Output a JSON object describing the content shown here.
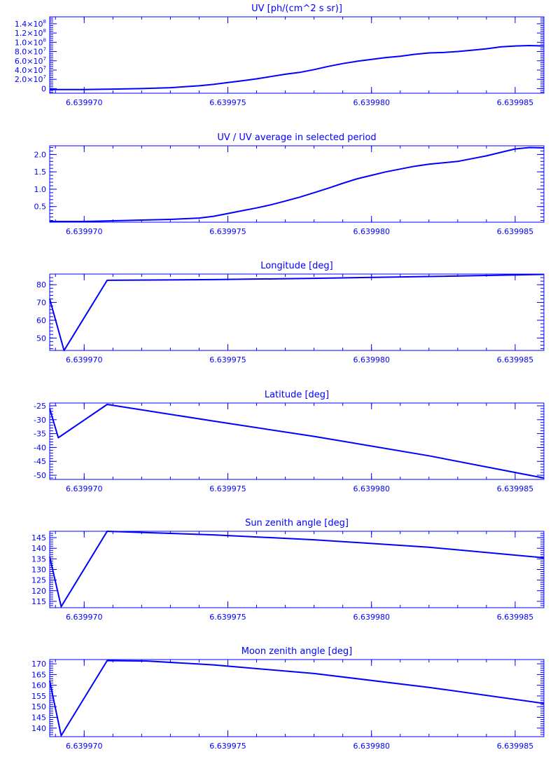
{
  "figure": {
    "color": "#0000ff",
    "background": "#ffffff"
  },
  "chart_data": [
    {
      "type": "line",
      "title": "UV [ph/(cm^2 s sr)]",
      "xlabel": "",
      "ylabel": "",
      "xlim": [
        6.6399688,
        6.639986
      ],
      "ylim": [
        -10000000.0,
        155000000.0
      ],
      "x_ticks": [
        6.63997,
        6.639975,
        6.63998,
        6.639985
      ],
      "x_tick_labels": [
        "6.639970",
        "6.639975",
        "6.639980",
        "6.639985"
      ],
      "y_ticks": [
        0,
        20000000.0,
        40000000.0,
        60000000.0,
        80000000.0,
        100000000.0,
        120000000.0,
        140000000.0
      ],
      "y_tick_labels": [
        {
          "mant": "0",
          "exp": ""
        },
        {
          "mant": "2.0×10",
          "exp": "7"
        },
        {
          "mant": "4.0×10",
          "exp": "7"
        },
        {
          "mant": "6.0×10",
          "exp": "7"
        },
        {
          "mant": "8.0×10",
          "exp": "7"
        },
        {
          "mant": "1.0×10",
          "exp": "8"
        },
        {
          "mant": "1.2×10",
          "exp": "8"
        },
        {
          "mant": "1.4×10",
          "exp": "8"
        }
      ],
      "series": [
        {
          "x": [
            6.6399688,
            6.63997,
            6.639971,
            6.639972,
            6.639973,
            6.639974,
            6.6399745,
            6.639975,
            6.6399755,
            6.639976,
            6.6399765,
            6.639977,
            6.6399775,
            6.639978,
            6.6399785,
            6.639979,
            6.6399795,
            6.63998,
            6.6399805,
            6.639981,
            6.6399815,
            6.639982,
            6.6399825,
            6.639983,
            6.6399835,
            6.639984,
            6.6399845,
            6.639985,
            6.6399855,
            6.639986
          ],
          "y": [
            -2000000.0,
            -2000000.0,
            -1000000.0,
            0,
            2000000.0,
            6000000.0,
            9000000.0,
            13000000.0,
            17000000.0,
            21000000.0,
            26000000.0,
            31000000.0,
            35000000.0,
            41000000.0,
            48000000.0,
            54000000.0,
            59000000.0,
            63000000.0,
            67000000.0,
            70000000.0,
            74000000.0,
            77000000.0,
            78000000.0,
            80000000.0,
            83000000.0,
            86000000.0,
            90000000.0,
            92000000.0,
            93000000.0,
            92000000.0
          ]
        }
      ]
    },
    {
      "type": "line",
      "title": "UV / UV average in selected period",
      "xlabel": "",
      "ylabel": "",
      "xlim": [
        6.6399688,
        6.639986
      ],
      "ylim": [
        0.05,
        2.25
      ],
      "x_ticks": [
        6.63997,
        6.639975,
        6.63998,
        6.639985
      ],
      "x_tick_labels": [
        "6.639970",
        "6.639975",
        "6.639980",
        "6.639985"
      ],
      "y_ticks": [
        0.5,
        1.0,
        1.5,
        2.0
      ],
      "y_tick_labels": [
        {
          "mant": "0.5",
          "exp": ""
        },
        {
          "mant": "1.0",
          "exp": ""
        },
        {
          "mant": "1.5",
          "exp": ""
        },
        {
          "mant": "2.0",
          "exp": ""
        }
      ],
      "series": [
        {
          "x": [
            6.6399688,
            6.63997,
            6.639971,
            6.639972,
            6.639973,
            6.639974,
            6.6399745,
            6.639975,
            6.6399755,
            6.639976,
            6.6399765,
            6.639977,
            6.6399775,
            6.639978,
            6.6399785,
            6.639979,
            6.6399795,
            6.63998,
            6.6399805,
            6.639981,
            6.6399815,
            6.639982,
            6.6399825,
            6.639983,
            6.6399835,
            6.639984,
            6.6399845,
            6.639985,
            6.6399855,
            6.639986
          ],
          "y": [
            0.07,
            0.07,
            0.09,
            0.11,
            0.13,
            0.17,
            0.22,
            0.3,
            0.38,
            0.46,
            0.55,
            0.66,
            0.77,
            0.9,
            1.03,
            1.17,
            1.3,
            1.4,
            1.5,
            1.58,
            1.66,
            1.72,
            1.76,
            1.8,
            1.88,
            1.96,
            2.06,
            2.16,
            2.2,
            2.19
          ]
        }
      ]
    },
    {
      "type": "line",
      "title": "Longitude [deg]",
      "xlabel": "",
      "ylabel": "",
      "xlim": [
        6.6399688,
        6.639986
      ],
      "ylim": [
        43,
        86
      ],
      "x_ticks": [
        6.63997,
        6.639975,
        6.63998,
        6.639985
      ],
      "x_tick_labels": [
        "6.639970",
        "6.639975",
        "6.639980",
        "6.639985"
      ],
      "y_ticks": [
        50,
        60,
        70,
        80
      ],
      "y_tick_labels": [
        {
          "mant": "50",
          "exp": ""
        },
        {
          "mant": "60",
          "exp": ""
        },
        {
          "mant": "70",
          "exp": ""
        },
        {
          "mant": "80",
          "exp": ""
        }
      ],
      "series": [
        {
          "x": [
            6.6399688,
            6.6399693,
            6.6399708,
            6.6399745,
            6.639978,
            6.639982,
            6.639986
          ],
          "y": [
            72,
            43,
            82.5,
            82.9,
            83.6,
            84.6,
            85.8
          ]
        }
      ]
    },
    {
      "type": "line",
      "title": "Latitude [deg]",
      "xlabel": "",
      "ylabel": "",
      "xlim": [
        6.6399688,
        6.639986
      ],
      "ylim": [
        -51.5,
        -24
      ],
      "x_ticks": [
        6.63997,
        6.639975,
        6.63998,
        6.639985
      ],
      "x_tick_labels": [
        "6.639970",
        "6.639975",
        "6.639980",
        "6.639985"
      ],
      "y_ticks": [
        -50,
        -45,
        -40,
        -35,
        -30,
        -25
      ],
      "y_tick_labels": [
        {
          "mant": "-50",
          "exp": ""
        },
        {
          "mant": "-45",
          "exp": ""
        },
        {
          "mant": "-40",
          "exp": ""
        },
        {
          "mant": "-35",
          "exp": ""
        },
        {
          "mant": "-30",
          "exp": ""
        },
        {
          "mant": "-25",
          "exp": ""
        }
      ],
      "series": [
        {
          "x": [
            6.6399688,
            6.6399691,
            6.6399708,
            6.6399745,
            6.639978,
            6.639982,
            6.639986
          ],
          "y": [
            -26,
            -36.5,
            -24.5,
            -30.5,
            -36,
            -43,
            -51
          ]
        }
      ]
    },
    {
      "type": "line",
      "title": "Sun zenith angle [deg]",
      "xlabel": "",
      "ylabel": "",
      "xlim": [
        6.6399688,
        6.639986
      ],
      "ylim": [
        112,
        148
      ],
      "x_ticks": [
        6.63997,
        6.639975,
        6.63998,
        6.639985
      ],
      "x_tick_labels": [
        "6.639970",
        "6.639975",
        "6.639980",
        "6.639985"
      ],
      "y_ticks": [
        115,
        120,
        125,
        130,
        135,
        140,
        145
      ],
      "y_tick_labels": [
        {
          "mant": "115",
          "exp": ""
        },
        {
          "mant": "120",
          "exp": ""
        },
        {
          "mant": "125",
          "exp": ""
        },
        {
          "mant": "130",
          "exp": ""
        },
        {
          "mant": "135",
          "exp": ""
        },
        {
          "mant": "140",
          "exp": ""
        },
        {
          "mant": "145",
          "exp": ""
        }
      ],
      "series": [
        {
          "x": [
            6.6399688,
            6.6399692,
            6.6399708,
            6.6399745,
            6.639978,
            6.639982,
            6.639986
          ],
          "y": [
            136,
            112.5,
            148,
            146.3,
            144,
            140.5,
            135.5
          ]
        }
      ]
    },
    {
      "type": "line",
      "title": "Moon zenith angle [deg]",
      "xlabel": "",
      "ylabel": "",
      "xlim": [
        6.6399688,
        6.639986
      ],
      "ylim": [
        136,
        172
      ],
      "x_ticks": [
        6.63997,
        6.639975,
        6.63998,
        6.639985
      ],
      "x_tick_labels": [
        "6.639970",
        "6.639975",
        "6.639980",
        "6.639985"
      ],
      "y_ticks": [
        140,
        145,
        150,
        155,
        160,
        165,
        170
      ],
      "y_tick_labels": [
        {
          "mant": "140",
          "exp": ""
        },
        {
          "mant": "145",
          "exp": ""
        },
        {
          "mant": "150",
          "exp": ""
        },
        {
          "mant": "155",
          "exp": ""
        },
        {
          "mant": "160",
          "exp": ""
        },
        {
          "mant": "165",
          "exp": ""
        },
        {
          "mant": "170",
          "exp": ""
        }
      ],
      "series": [
        {
          "x": [
            6.6399688,
            6.6399692,
            6.6399708,
            6.6399722,
            6.6399745,
            6.639978,
            6.639982,
            6.639986
          ],
          "y": [
            162,
            136.5,
            171.5,
            171.3,
            169.5,
            165.5,
            159,
            151.5
          ]
        }
      ]
    }
  ]
}
